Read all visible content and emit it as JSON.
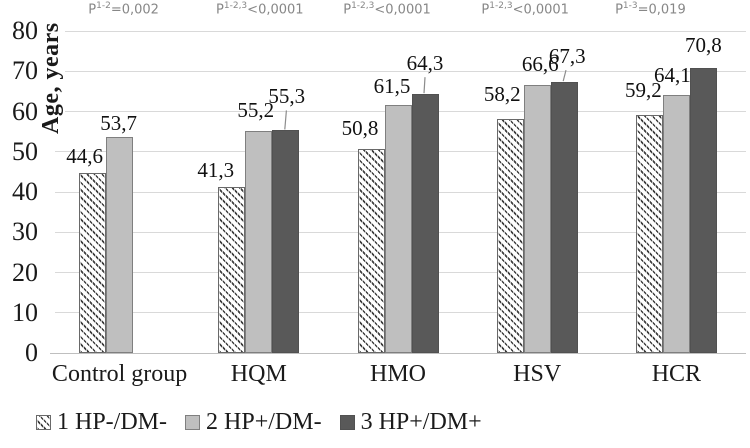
{
  "chart_data": {
    "type": "bar",
    "title": "",
    "xlabel": "",
    "ylabel": "Age, years",
    "ylim": [
      0,
      80
    ],
    "yticks": [
      0,
      10,
      20,
      30,
      40,
      50,
      60,
      70,
      80
    ],
    "grid": "horizontal",
    "legend_position": "bottom",
    "categories": [
      "Control group",
      "HQM",
      "HMO",
      "HSV",
      "HCR"
    ],
    "series": [
      {
        "name": "1 HP-/DM-",
        "style": "hatched",
        "values": [
          44.6,
          41.3,
          50.8,
          58.2,
          59.2
        ],
        "labels": [
          "44,6",
          "41,3",
          "50,8",
          "58,2",
          "59,2"
        ]
      },
      {
        "name": "2 HP+/DM-",
        "style": "light-gray",
        "values": [
          53.7,
          55.2,
          61.5,
          66.6,
          64.1
        ],
        "labels": [
          "53,7",
          "55,2",
          "61,5",
          "66,6",
          "64,1"
        ]
      },
      {
        "name": "3 HP+/DM+",
        "style": "dark-gray",
        "values": [
          null,
          55.3,
          64.3,
          67.3,
          70.8
        ],
        "labels": [
          null,
          "55,3",
          "64,3",
          "67,3",
          "70,8"
        ]
      }
    ],
    "p_annotations": [
      {
        "p": "P",
        "sup": "1-2",
        "rest": "=0,002"
      },
      {
        "p": "P",
        "sup": "1-2,3",
        "rest": "<0,0001"
      },
      {
        "p": "P",
        "sup": "1-2,3",
        "rest": "<0,0001"
      },
      {
        "p": "P",
        "sup": "1-2,3",
        "rest": "<0,0001"
      },
      {
        "p": "P",
        "sup": "1-3",
        "rest": "=0,019"
      }
    ],
    "colors": {
      "light_gray_fill": "#bfbfbf",
      "dark_gray_fill": "#595959",
      "bar_border": "#7f7f7f",
      "gridline": "#d9d9d9",
      "axis_line": "#bfbfbf",
      "p_text": "#878787",
      "label_text": "#111111"
    },
    "layout_hints": {
      "label_offsets": [
        [
          [
            -8,
            6,
            false
          ],
          [
            -16,
            6,
            false
          ],
          [
            -11,
            10,
            false
          ],
          [
            -8,
            14,
            false
          ],
          [
            -6,
            14,
            false
          ]
        ],
        [
          [
            -1,
            3,
            false
          ],
          [
            -3,
            10,
            false
          ],
          [
            -6,
            8,
            false
          ],
          [
            3,
            10,
            false
          ],
          [
            -4,
            9,
            false
          ]
        ],
        [
          null,
          [
            1,
            23,
            true
          ],
          [
            0,
            20,
            true
          ],
          [
            3,
            15,
            true
          ],
          [
            0,
            12,
            false
          ]
        ]
      ],
      "p_dx": [
        4,
        1,
        -11,
        -12,
        -26
      ]
    }
  },
  "legend": {
    "items": [
      {
        "label": "1 HP-/DM-",
        "swatch": "hatched"
      },
      {
        "label": "2 HP+/DM-",
        "swatch": "light-gray"
      },
      {
        "label": "3 HP+/DM+",
        "swatch": "dark-gray"
      }
    ]
  }
}
